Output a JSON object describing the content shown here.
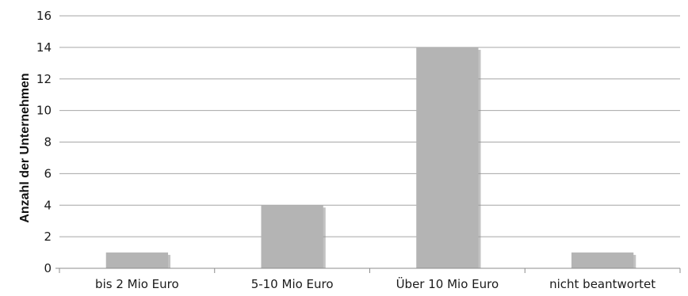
{
  "chart_data": {
    "type": "bar",
    "title": "",
    "xlabel": "",
    "ylabel": "Anzahl der Unternehmen",
    "categories": [
      "bis 2 Mio Euro",
      "5-10 Mio Euro",
      "Über 10 Mio Euro",
      "nicht beantwortet"
    ],
    "values": [
      1,
      4,
      14,
      1
    ],
    "ylim": [
      0,
      16
    ],
    "yticks": [
      "0",
      "2",
      "4",
      "6",
      "8",
      "10",
      "12",
      "14",
      "16"
    ],
    "grid": true,
    "legend": "none",
    "colors": {
      "bar": "#b4b4b4",
      "bar_shadow": "#8f8f8f",
      "grid": "#a6a6a6",
      "axis": "#8c8c8c"
    }
  }
}
